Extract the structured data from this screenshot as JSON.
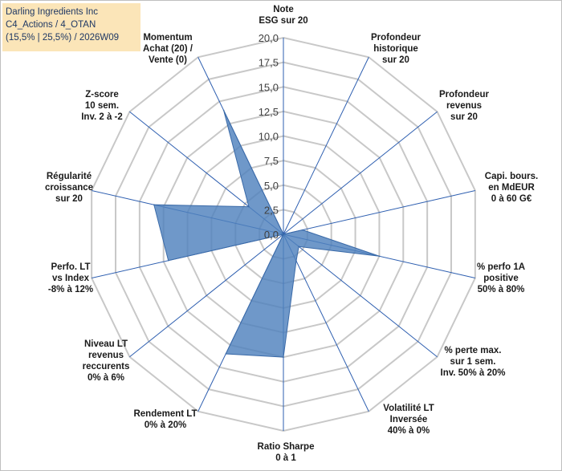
{
  "chart_data": {
    "type": "radar",
    "title_lines": [
      "Darling Ingredients Inc",
      "C4_Actions / 4_OTAN",
      "(15,5% | 25,5%) / 2026W09"
    ],
    "rlim": [
      0,
      20
    ],
    "ticks": [
      "0,0",
      "2,5",
      "5,0",
      "7,5",
      "10,0",
      "12,5",
      "15,0",
      "17,5",
      "20,0"
    ],
    "axes": [
      {
        "lines": [
          "Note",
          "ESG sur 20"
        ],
        "value": 0.0
      },
      {
        "lines": [
          "Profondeur",
          "historique",
          "sur 20"
        ],
        "value": 0.0
      },
      {
        "lines": [
          "Profondeur",
          "revenus",
          "sur 20"
        ],
        "value": 0.0
      },
      {
        "lines": [
          "Capi. bours.",
          "en MdEUR",
          "0 à 60 G€"
        ],
        "value": 2.0
      },
      {
        "lines": [
          "% perfo 1A",
          "positive",
          "50% à 80%"
        ],
        "value": 10.0
      },
      {
        "lines": [
          "% perte max.",
          "sur 1 sem.",
          "Inv. 50% à 20%"
        ],
        "value": 2.0
      },
      {
        "lines": [
          "Volatilité LT",
          "Inversée",
          "40% à 0%"
        ],
        "value": 3.0
      },
      {
        "lines": [
          "Ratio Sharpe",
          "0 à 1"
        ],
        "value": 12.5
      },
      {
        "lines": [
          "Rendement LT",
          "0% à 20%"
        ],
        "value": 13.5
      },
      {
        "lines": [
          "Niveau LT",
          "revenus",
          "reccurents",
          "0% à 6%"
        ],
        "value": 0.0
      },
      {
        "lines": [
          "Perfo. LT",
          "vs Index",
          "-8% à 12%"
        ],
        "value": 12.0
      },
      {
        "lines": [
          "Régularité",
          "croissance",
          "sur 20"
        ],
        "value": 13.5
      },
      {
        "lines": [
          "Z-score",
          "10 sem.",
          "Inv. 2 à -2"
        ],
        "value": 4.5
      },
      {
        "lines": [
          "Momentum",
          "Achat (20) /",
          "Vente (0)"
        ],
        "value": 14.0
      }
    ],
    "colors": {
      "fill": "#4f81bd",
      "stroke": "#3a6aa8",
      "grid": "#c8c8c8",
      "spoke": "#2e5fb0",
      "title_bg": "#fbe5b8",
      "title_text": "#1f3864"
    }
  }
}
